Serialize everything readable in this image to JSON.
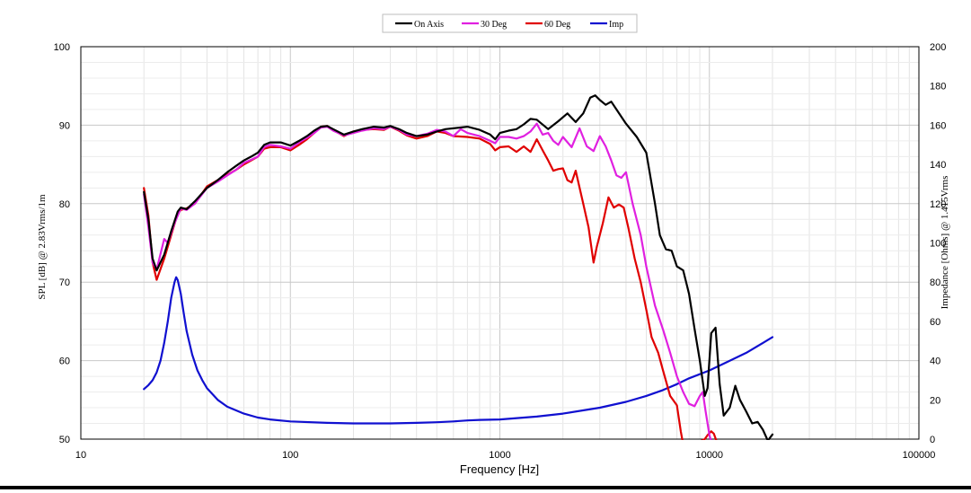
{
  "chart_data": {
    "type": "line",
    "xlabel": "Frequency [Hz]",
    "ylabel": "SPL [dB] @ 2.83Vrms/1m",
    "y2label": "Impedance [Ohms] @ 1.415Vrms",
    "xscale": "log",
    "xlim": [
      10,
      100000
    ],
    "ylim": [
      50,
      100
    ],
    "y2lim": [
      0,
      200
    ],
    "x_ticks": [
      10,
      100,
      1000,
      10000,
      100000
    ],
    "y_ticks": [
      50,
      60,
      70,
      80,
      90,
      100
    ],
    "y2_ticks": [
      0,
      20,
      40,
      60,
      80,
      100,
      120,
      140,
      160,
      180,
      200
    ],
    "grid": true,
    "legend_position": "top-center",
    "series": [
      {
        "name": "On Axis",
        "color": "#000000",
        "axis": "left",
        "points": [
          [
            20,
            81.5
          ],
          [
            21,
            78
          ],
          [
            22,
            73
          ],
          [
            23,
            71.5
          ],
          [
            25,
            73.5
          ],
          [
            27,
            76.5
          ],
          [
            29,
            79
          ],
          [
            30,
            79.5
          ],
          [
            32,
            79.3
          ],
          [
            35,
            80.3
          ],
          [
            40,
            82
          ],
          [
            45,
            83
          ],
          [
            50,
            84
          ],
          [
            55,
            84.8
          ],
          [
            60,
            85.5
          ],
          [
            65,
            86
          ],
          [
            70,
            86.5
          ],
          [
            75,
            87.5
          ],
          [
            80,
            87.8
          ],
          [
            90,
            87.8
          ],
          [
            100,
            87.4
          ],
          [
            110,
            88
          ],
          [
            120,
            88.6
          ],
          [
            130,
            89.3
          ],
          [
            140,
            89.8
          ],
          [
            150,
            89.9
          ],
          [
            160,
            89.5
          ],
          [
            180,
            88.8
          ],
          [
            200,
            89.2
          ],
          [
            220,
            89.5
          ],
          [
            250,
            89.8
          ],
          [
            280,
            89.7
          ],
          [
            300,
            89.9
          ],
          [
            330,
            89.5
          ],
          [
            360,
            89
          ],
          [
            400,
            88.6
          ],
          [
            450,
            88.8
          ],
          [
            500,
            89.2
          ],
          [
            550,
            89.5
          ],
          [
            600,
            89.6
          ],
          [
            700,
            89.8
          ],
          [
            800,
            89.4
          ],
          [
            900,
            88.8
          ],
          [
            950,
            88.2
          ],
          [
            1000,
            89
          ],
          [
            1100,
            89.3
          ],
          [
            1200,
            89.5
          ],
          [
            1300,
            90.1
          ],
          [
            1400,
            90.8
          ],
          [
            1500,
            90.7
          ],
          [
            1700,
            89.5
          ],
          [
            1900,
            90.5
          ],
          [
            2100,
            91.5
          ],
          [
            2300,
            90.4
          ],
          [
            2500,
            91.5
          ],
          [
            2700,
            93.5
          ],
          [
            2850,
            93.8
          ],
          [
            3000,
            93.2
          ],
          [
            3200,
            92.6
          ],
          [
            3400,
            93
          ],
          [
            3600,
            92
          ],
          [
            4000,
            90.2
          ],
          [
            4500,
            88.5
          ],
          [
            5000,
            86.5
          ],
          [
            5500,
            80
          ],
          [
            5800,
            76
          ],
          [
            6200,
            74.2
          ],
          [
            6600,
            74
          ],
          [
            7000,
            72
          ],
          [
            7500,
            71.5
          ],
          [
            8000,
            68.5
          ],
          [
            8500,
            64
          ],
          [
            9000,
            60
          ],
          [
            9500,
            55.5
          ],
          [
            9800,
            56.5
          ],
          [
            10200,
            63.5
          ],
          [
            10700,
            64.2
          ],
          [
            11200,
            57
          ],
          [
            11700,
            53
          ],
          [
            12500,
            54
          ],
          [
            13300,
            56.8
          ],
          [
            14000,
            55
          ],
          [
            15000,
            53.5
          ],
          [
            16000,
            52
          ],
          [
            17000,
            52.2
          ],
          [
            18000,
            51.2
          ],
          [
            19000,
            49.8
          ],
          [
            20000,
            50.6
          ]
        ]
      },
      {
        "name": "30 Deg",
        "color": "#e020e0",
        "axis": "left",
        "points": [
          [
            20,
            81.2
          ],
          [
            21,
            77
          ],
          [
            22,
            72.5
          ],
          [
            23,
            71.6
          ],
          [
            25,
            75.5
          ],
          [
            26,
            75
          ],
          [
            28,
            77.5
          ],
          [
            30,
            79.4
          ],
          [
            32,
            79.2
          ],
          [
            35,
            80
          ],
          [
            40,
            82
          ],
          [
            45,
            82.8
          ],
          [
            50,
            83.6
          ],
          [
            55,
            84.3
          ],
          [
            60,
            85.2
          ],
          [
            65,
            85.6
          ],
          [
            70,
            86
          ],
          [
            75,
            87.2
          ],
          [
            80,
            87.5
          ],
          [
            90,
            87.3
          ],
          [
            100,
            87
          ],
          [
            110,
            87.8
          ],
          [
            120,
            88.4
          ],
          [
            130,
            89
          ],
          [
            140,
            89.7
          ],
          [
            150,
            89.8
          ],
          [
            160,
            89.3
          ],
          [
            180,
            88.7
          ],
          [
            200,
            89
          ],
          [
            220,
            89.3
          ],
          [
            250,
            89.6
          ],
          [
            280,
            89.5
          ],
          [
            300,
            89.8
          ],
          [
            330,
            89.4
          ],
          [
            360,
            88.8
          ],
          [
            400,
            88.6
          ],
          [
            450,
            88.9
          ],
          [
            500,
            89.4
          ],
          [
            550,
            89.2
          ],
          [
            600,
            88.6
          ],
          [
            650,
            89.5
          ],
          [
            700,
            89
          ],
          [
            800,
            88.6
          ],
          [
            900,
            88
          ],
          [
            950,
            87.7
          ],
          [
            1000,
            88.5
          ],
          [
            1100,
            88.5
          ],
          [
            1200,
            88.3
          ],
          [
            1300,
            88.6
          ],
          [
            1400,
            89.2
          ],
          [
            1500,
            90.2
          ],
          [
            1600,
            88.8
          ],
          [
            1700,
            89
          ],
          [
            1800,
            88
          ],
          [
            1900,
            87.5
          ],
          [
            2000,
            88.5
          ],
          [
            2200,
            87.2
          ],
          [
            2400,
            89.6
          ],
          [
            2600,
            87.3
          ],
          [
            2800,
            86.7
          ],
          [
            3000,
            88.6
          ],
          [
            3200,
            87.3
          ],
          [
            3400,
            85.5
          ],
          [
            3600,
            83.6
          ],
          [
            3800,
            83.3
          ],
          [
            4000,
            84
          ],
          [
            4300,
            80
          ],
          [
            4700,
            76
          ],
          [
            5000,
            72
          ],
          [
            5500,
            67
          ],
          [
            6000,
            64
          ],
          [
            6500,
            61
          ],
          [
            7000,
            58
          ],
          [
            7500,
            56
          ],
          [
            8000,
            54.5
          ],
          [
            8500,
            54.2
          ],
          [
            9000,
            55.5
          ],
          [
            9300,
            56
          ],
          [
            9600,
            53.5
          ],
          [
            10000,
            50.5
          ],
          [
            10500,
            48.5
          ]
        ]
      },
      {
        "name": "60 Deg",
        "color": "#e00000",
        "axis": "left",
        "points": [
          [
            20,
            82
          ],
          [
            21,
            78.5
          ],
          [
            22,
            72.5
          ],
          [
            23,
            70.3
          ],
          [
            25,
            73
          ],
          [
            27,
            76
          ],
          [
            29,
            78.8
          ],
          [
            30,
            79.2
          ],
          [
            32,
            79.4
          ],
          [
            35,
            80
          ],
          [
            40,
            82.2
          ],
          [
            45,
            83
          ],
          [
            50,
            83.7
          ],
          [
            55,
            84.3
          ],
          [
            60,
            85
          ],
          [
            65,
            85.5
          ],
          [
            70,
            86
          ],
          [
            75,
            87
          ],
          [
            80,
            87.2
          ],
          [
            90,
            87.2
          ],
          [
            100,
            86.8
          ],
          [
            110,
            87.5
          ],
          [
            120,
            88.2
          ],
          [
            130,
            89
          ],
          [
            140,
            89.8
          ],
          [
            150,
            89.9
          ],
          [
            160,
            89.4
          ],
          [
            180,
            88.6
          ],
          [
            200,
            89.2
          ],
          [
            220,
            89.4
          ],
          [
            250,
            89.5
          ],
          [
            280,
            89.4
          ],
          [
            300,
            89.8
          ],
          [
            330,
            89.3
          ],
          [
            360,
            88.7
          ],
          [
            400,
            88.3
          ],
          [
            450,
            88.6
          ],
          [
            500,
            89.2
          ],
          [
            550,
            89
          ],
          [
            600,
            88.6
          ],
          [
            700,
            88.5
          ],
          [
            800,
            88.3
          ],
          [
            900,
            87.6
          ],
          [
            950,
            86.8
          ],
          [
            1000,
            87.2
          ],
          [
            1100,
            87.3
          ],
          [
            1200,
            86.6
          ],
          [
            1300,
            87.3
          ],
          [
            1400,
            86.6
          ],
          [
            1500,
            88.2
          ],
          [
            1600,
            86.8
          ],
          [
            1700,
            85.5
          ],
          [
            1800,
            84.2
          ],
          [
            1900,
            84.4
          ],
          [
            2000,
            84.5
          ],
          [
            2100,
            83
          ],
          [
            2200,
            82.7
          ],
          [
            2300,
            84.2
          ],
          [
            2500,
            80
          ],
          [
            2650,
            77
          ],
          [
            2800,
            72.5
          ],
          [
            2900,
            74.5
          ],
          [
            3100,
            77.5
          ],
          [
            3300,
            80.8
          ],
          [
            3500,
            79.5
          ],
          [
            3700,
            79.9
          ],
          [
            3900,
            79.5
          ],
          [
            4100,
            77
          ],
          [
            4400,
            73
          ],
          [
            4700,
            70
          ],
          [
            5000,
            66.5
          ],
          [
            5300,
            63
          ],
          [
            5700,
            61
          ],
          [
            6000,
            58.8
          ],
          [
            6500,
            55.5
          ],
          [
            7000,
            54.3
          ],
          [
            7300,
            51
          ],
          [
            7600,
            48.5
          ],
          [
            8000,
            49
          ],
          [
            9500,
            50
          ],
          [
            9800,
            50.5
          ],
          [
            10200,
            51
          ],
          [
            10500,
            50.7
          ],
          [
            11000,
            49.2
          ]
        ]
      },
      {
        "name": "Imp",
        "color": "#1010d0",
        "axis": "right",
        "points": [
          [
            20,
            25.5
          ],
          [
            21,
            27.5
          ],
          [
            22,
            30
          ],
          [
            23,
            34
          ],
          [
            24,
            40
          ],
          [
            25,
            49
          ],
          [
            26,
            60
          ],
          [
            27,
            72
          ],
          [
            28,
            80
          ],
          [
            28.5,
            82.5
          ],
          [
            29,
            81
          ],
          [
            30,
            74
          ],
          [
            31,
            64
          ],
          [
            32,
            55
          ],
          [
            34,
            43
          ],
          [
            36,
            35
          ],
          [
            38,
            30
          ],
          [
            40,
            26
          ],
          [
            45,
            20
          ],
          [
            50,
            16.5
          ],
          [
            60,
            13
          ],
          [
            70,
            11
          ],
          [
            80,
            10
          ],
          [
            100,
            9
          ],
          [
            150,
            8.3
          ],
          [
            200,
            8
          ],
          [
            300,
            8
          ],
          [
            400,
            8.3
          ],
          [
            500,
            8.6
          ],
          [
            600,
            9
          ],
          [
            700,
            9.5
          ],
          [
            800,
            9.8
          ],
          [
            1000,
            10
          ],
          [
            1500,
            11.5
          ],
          [
            2000,
            13
          ],
          [
            3000,
            16
          ],
          [
            4000,
            19
          ],
          [
            5000,
            22
          ],
          [
            6000,
            25
          ],
          [
            7000,
            28
          ],
          [
            8000,
            31
          ],
          [
            10000,
            35
          ],
          [
            12000,
            39
          ],
          [
            15000,
            44
          ],
          [
            18000,
            49
          ],
          [
            20000,
            52
          ]
        ]
      }
    ]
  }
}
